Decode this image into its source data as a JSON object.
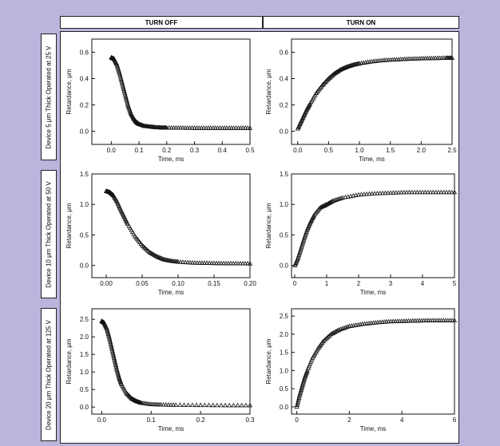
{
  "headers": {
    "turn_off": "TURN OFF",
    "turn_on": "TURN ON"
  },
  "row_labels": [
    "Device 5 μm Thick Operated at 25 V",
    "Device 10 μm Thick Operated at 50 V",
    "Device 20 μm Thick Operated at 125 V"
  ],
  "colors": {
    "background": "#b9b5dd",
    "panel": "#ffffff",
    "marker": "#111111"
  },
  "chart_data": [
    {
      "id": "row1-off",
      "type": "scatter",
      "marker": "open-triangle",
      "xlabel": "Time, ms",
      "ylabel": "Retardance, μm",
      "xlim": [
        -0.07,
        0.5
      ],
      "ylim": [
        -0.1,
        0.7
      ],
      "xticks": [
        0,
        0.1,
        0.2,
        0.3,
        0.4,
        0.5
      ],
      "xtick_labels": [
        "0.0",
        "0.1",
        "0.2",
        "0.3",
        "0.4",
        "0.5"
      ],
      "yticks": [
        0,
        0.2,
        0.4,
        0.6
      ],
      "ytick_labels": [
        "0.0",
        "0.2",
        "0.4",
        "0.6"
      ],
      "x": [
        0,
        0.01,
        0.02,
        0.03,
        0.04,
        0.05,
        0.06,
        0.07,
        0.08,
        0.09,
        0.1,
        0.12,
        0.14,
        0.16,
        0.18,
        0.2,
        0.25,
        0.3,
        0.35,
        0.4,
        0.45,
        0.5
      ],
      "y": [
        0.56,
        0.55,
        0.51,
        0.44,
        0.36,
        0.28,
        0.2,
        0.14,
        0.1,
        0.07,
        0.055,
        0.04,
        0.035,
        0.03,
        0.028,
        0.027,
        0.026,
        0.025,
        0.025,
        0.025,
        0.025,
        0.025
      ]
    },
    {
      "id": "row1-on",
      "type": "scatter",
      "marker": "open-triangle",
      "xlabel": "Time, ms",
      "ylabel": "Retardance, μm",
      "xlim": [
        -0.1,
        2.5
      ],
      "ylim": [
        -0.1,
        0.7
      ],
      "xticks": [
        0,
        0.5,
        1,
        1.5,
        2,
        2.5
      ],
      "xtick_labels": [
        "0.0",
        "0.5",
        "1.0",
        "1.5",
        "2.0",
        "2.5"
      ],
      "yticks": [
        0,
        0.2,
        0.4,
        0.6
      ],
      "ytick_labels": [
        "0.0",
        "0.2",
        "0.4",
        "0.6"
      ],
      "x": [
        0,
        0.05,
        0.1,
        0.15,
        0.2,
        0.3,
        0.4,
        0.5,
        0.6,
        0.7,
        0.8,
        0.9,
        1.0,
        1.2,
        1.4,
        1.6,
        1.8,
        2.0,
        2.2,
        2.4,
        2.5
      ],
      "y": [
        0.02,
        0.07,
        0.12,
        0.17,
        0.21,
        0.29,
        0.35,
        0.4,
        0.44,
        0.47,
        0.49,
        0.505,
        0.515,
        0.53,
        0.54,
        0.545,
        0.55,
        0.553,
        0.555,
        0.557,
        0.557
      ]
    },
    {
      "id": "row2-off",
      "type": "scatter",
      "marker": "open-triangle",
      "xlabel": "Time, ms",
      "ylabel": "Retardance, μm",
      "xlim": [
        -0.02,
        0.2
      ],
      "ylim": [
        -0.2,
        1.5
      ],
      "xticks": [
        0,
        0.05,
        0.1,
        0.15,
        0.2
      ],
      "xtick_labels": [
        "0.00",
        "0.05",
        "0.10",
        "0.15",
        "0.20"
      ],
      "yticks": [
        0,
        0.5,
        1.0,
        1.5
      ],
      "ytick_labels": [
        "0.0",
        "0.5",
        "1.0",
        "1.5"
      ],
      "x": [
        0,
        0.005,
        0.01,
        0.015,
        0.02,
        0.025,
        0.03,
        0.04,
        0.05,
        0.06,
        0.07,
        0.08,
        0.09,
        0.1,
        0.12,
        0.14,
        0.16,
        0.18,
        0.2
      ],
      "y": [
        1.22,
        1.2,
        1.15,
        1.05,
        0.92,
        0.8,
        0.68,
        0.48,
        0.33,
        0.22,
        0.15,
        0.1,
        0.075,
        0.06,
        0.045,
        0.04,
        0.035,
        0.033,
        0.032
      ]
    },
    {
      "id": "row2-on",
      "type": "scatter",
      "marker": "open-triangle",
      "xlabel": "Time, ms",
      "ylabel": "Retardance, μm",
      "xlim": [
        -0.1,
        5
      ],
      "ylim": [
        -0.2,
        1.5
      ],
      "xticks": [
        0,
        1,
        2,
        3,
        4,
        5
      ],
      "xtick_labels": [
        "0",
        "1",
        "2",
        "3",
        "4",
        "5"
      ],
      "yticks": [
        0,
        0.5,
        1.0,
        1.5
      ],
      "ytick_labels": [
        "0.0",
        "0.5",
        "1.0",
        "1.5"
      ],
      "x": [
        0,
        0.1,
        0.2,
        0.3,
        0.4,
        0.5,
        0.6,
        0.8,
        1.0,
        1.2,
        1.5,
        2.0,
        2.5,
        3.0,
        3.5,
        4.0,
        4.5,
        5.0
      ],
      "y": [
        0.0,
        0.12,
        0.28,
        0.45,
        0.6,
        0.72,
        0.82,
        0.95,
        1.0,
        1.06,
        1.11,
        1.16,
        1.18,
        1.19,
        1.2,
        1.2,
        1.2,
        1.2
      ]
    },
    {
      "id": "row3-off",
      "type": "scatter",
      "marker": "open-triangle",
      "xlabel": "Time, ms",
      "ylabel": "Retardance, μm",
      "xlim": [
        -0.02,
        0.3
      ],
      "ylim": [
        -0.2,
        2.8
      ],
      "xticks": [
        0,
        0.1,
        0.2,
        0.3
      ],
      "xtick_labels": [
        "0.0",
        "0.1",
        "0.2",
        "0.3"
      ],
      "yticks": [
        0,
        0.5,
        1,
        1.5,
        2,
        2.5
      ],
      "ytick_labels": [
        "0.0",
        "0.5",
        "1.0",
        "1.5",
        "2.0",
        "2.5"
      ],
      "x": [
        0,
        0.005,
        0.01,
        0.015,
        0.02,
        0.025,
        0.03,
        0.035,
        0.04,
        0.05,
        0.06,
        0.07,
        0.08,
        0.1,
        0.12,
        0.15,
        0.2,
        0.25,
        0.3
      ],
      "y": [
        2.45,
        2.4,
        2.25,
        2.0,
        1.7,
        1.4,
        1.1,
        0.85,
        0.65,
        0.4,
        0.25,
        0.17,
        0.12,
        0.08,
        0.07,
        0.06,
        0.055,
        0.05,
        0.05
      ]
    },
    {
      "id": "row3-on",
      "type": "scatter",
      "marker": "open-triangle",
      "xlabel": "Time, ms",
      "ylabel": "Retardance, μm",
      "xlim": [
        -0.2,
        6
      ],
      "ylim": [
        -0.2,
        2.7
      ],
      "xticks": [
        0,
        2,
        4,
        6
      ],
      "xtick_labels": [
        "0",
        "2",
        "4",
        "6"
      ],
      "yticks": [
        0,
        0.5,
        1,
        1.5,
        2,
        2.5
      ],
      "ytick_labels": [
        "0.0",
        "0.5",
        "1.0",
        "1.5",
        "2.0",
        "2.5"
      ],
      "x": [
        0,
        0.1,
        0.2,
        0.3,
        0.4,
        0.6,
        0.8,
        1.0,
        1.3,
        1.6,
        2.0,
        2.5,
        3.0,
        3.5,
        4.0,
        4.5,
        5.0,
        5.5,
        6.0
      ],
      "y": [
        0.0,
        0.3,
        0.55,
        0.8,
        1.0,
        1.35,
        1.6,
        1.8,
        2.0,
        2.12,
        2.22,
        2.28,
        2.32,
        2.35,
        2.36,
        2.37,
        2.38,
        2.38,
        2.38
      ]
    }
  ]
}
